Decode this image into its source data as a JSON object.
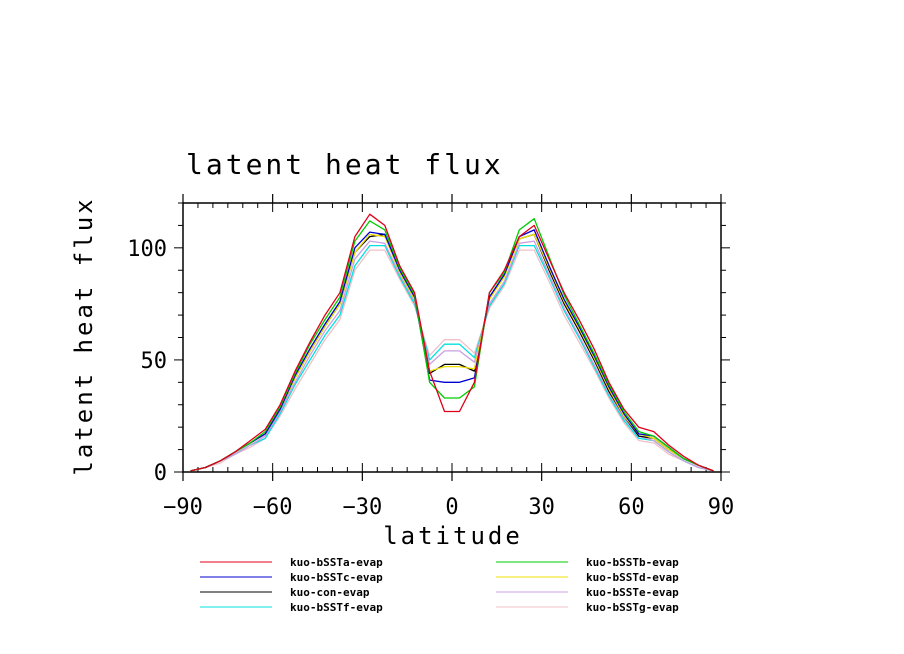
{
  "chart_data": {
    "type": "line",
    "title": "latent heat flux",
    "xlabel": "latitude",
    "ylabel": "latent heat flux",
    "xlim": [
      -90,
      90
    ],
    "ylim": [
      0,
      120
    ],
    "xticks": [
      -90,
      -60,
      -30,
      0,
      30,
      60,
      90
    ],
    "xtick_labels": [
      "−90",
      "−60",
      "−30",
      "0",
      "30",
      "60",
      "90"
    ],
    "yticks": [
      0,
      50,
      100
    ],
    "ytick_labels": [
      "0",
      "50",
      "100"
    ],
    "grid": false,
    "legend_position": "bottom",
    "x": [
      -87.5,
      -82.5,
      -77.5,
      -72.5,
      -67.5,
      -62.5,
      -57.5,
      -52.5,
      -47.5,
      -42.5,
      -37.5,
      -32.5,
      -27.5,
      -22.5,
      -17.5,
      -12.5,
      -7.5,
      -2.5,
      2.5,
      7.5,
      12.5,
      17.5,
      22.5,
      27.5,
      32.5,
      37.5,
      42.5,
      47.5,
      52.5,
      57.5,
      62.5,
      67.5,
      72.5,
      77.5,
      82.5,
      87.5
    ],
    "series": [
      {
        "name": "kuo-bSSTa-evap",
        "color": "#e0001a",
        "values": [
          0.5,
          2,
          5,
          9,
          14,
          19,
          30,
          45,
          58,
          70,
          80,
          105,
          115,
          110,
          92,
          80,
          45,
          27,
          27,
          40,
          80,
          90,
          105,
          110,
          95,
          80,
          68,
          55,
          40,
          28,
          20,
          18,
          12,
          7,
          3,
          0.5
        ]
      },
      {
        "name": "kuo-bSSTb-evap",
        "color": "#00cc00",
        "values": [
          0.5,
          2,
          5,
          9,
          13,
          18,
          29,
          44,
          57,
          68,
          78,
          103,
          112,
          108,
          91,
          79,
          40,
          33,
          33,
          38,
          80,
          89,
          108,
          113,
          96,
          79,
          66,
          53,
          39,
          27,
          18,
          16,
          11,
          6,
          3,
          0.5
        ]
      },
      {
        "name": "kuo-bSSTc-evap",
        "color": "#0000d0",
        "values": [
          0.5,
          2,
          5,
          9,
          13,
          17,
          28,
          43,
          55,
          66,
          76,
          100,
          107,
          106,
          90,
          78,
          41,
          40,
          40,
          42,
          78,
          88,
          105,
          108,
          92,
          77,
          65,
          52,
          38,
          26,
          17,
          16,
          11,
          6,
          3,
          0.5
        ]
      },
      {
        "name": "kuo-bSSTd-evap",
        "color": "#f0e000",
        "values": [
          0.5,
          2,
          5,
          9,
          13,
          17,
          28,
          42,
          54,
          65,
          75,
          98,
          106,
          105,
          89,
          77,
          45,
          47,
          47,
          46,
          77,
          87,
          104,
          106,
          91,
          76,
          64,
          51,
          37,
          25,
          17,
          15,
          10,
          6,
          3,
          0.5
        ]
      },
      {
        "name": "kuo-con-evap",
        "color": "#000000",
        "values": [
          0.5,
          2,
          5,
          9,
          13,
          17,
          28,
          42,
          54,
          65,
          75,
          98,
          105,
          106,
          90,
          78,
          44,
          48,
          48,
          45,
          78,
          88,
          104,
          106,
          90,
          75,
          63,
          50,
          36,
          25,
          16,
          15,
          10,
          6,
          3,
          0.5
        ]
      },
      {
        "name": "kuo-bSSTe-evap",
        "color": "#c8a0e0",
        "values": [
          0.5,
          2,
          5,
          8,
          12,
          16,
          27,
          40,
          52,
          63,
          72,
          95,
          103,
          102,
          88,
          76,
          48,
          54,
          54,
          49,
          75,
          85,
          102,
          103,
          88,
          73,
          61,
          48,
          35,
          24,
          16,
          14,
          9,
          5,
          2,
          0.5
        ]
      },
      {
        "name": "kuo-bSSTf-evap",
        "color": "#00e0e0",
        "values": [
          0.5,
          2,
          5,
          8,
          12,
          15,
          26,
          39,
          50,
          61,
          70,
          92,
          101,
          101,
          87,
          75,
          50,
          57,
          57,
          51,
          74,
          84,
          101,
          101,
          87,
          72,
          60,
          47,
          34,
          23,
          15,
          14,
          9,
          5,
          2,
          0.5
        ]
      },
      {
        "name": "kuo-bSSTg-evap",
        "color": "#f0c0c8",
        "values": [
          0.5,
          2,
          4,
          8,
          11,
          15,
          25,
          37,
          48,
          59,
          68,
          90,
          99,
          99,
          86,
          74,
          52,
          59,
          59,
          53,
          73,
          83,
          99,
          99,
          85,
          70,
          58,
          46,
          33,
          22,
          14,
          13,
          8,
          5,
          2,
          0.5
        ]
      }
    ]
  }
}
